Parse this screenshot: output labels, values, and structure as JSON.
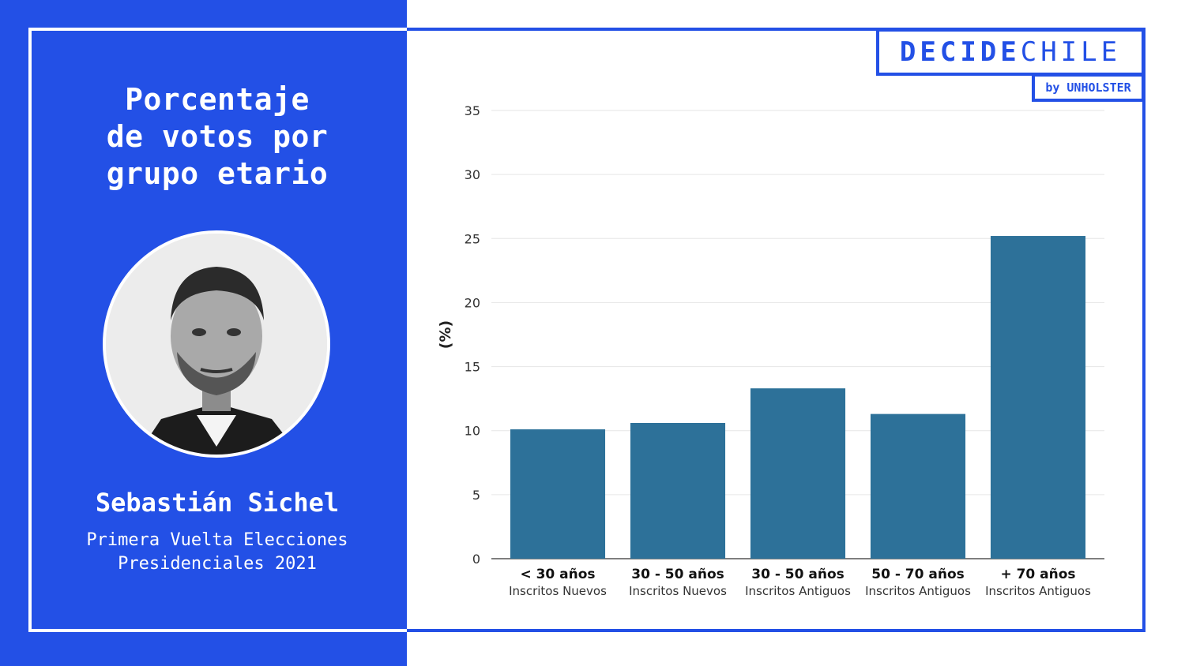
{
  "panel": {
    "title": "Porcentaje\nde votos por\ngrupo etario",
    "candidate_name": "Sebastián Sichel",
    "subtitle": "Primera Vuelta Elecciones\nPresidenciales 2021"
  },
  "logo": {
    "bold_text": "DECIDE",
    "light_text": "CHILE",
    "sub_text": "by UNHOLSTER"
  },
  "colors": {
    "brand_blue": "#2350e6",
    "bar": "#2d7199",
    "grid": "#e6e6e6"
  },
  "chart_data": {
    "type": "bar",
    "categories": [
      {
        "main": "< 30 años",
        "sub": "Inscritos Nuevos"
      },
      {
        "main": "30 - 50 años",
        "sub": "Inscritos Nuevos"
      },
      {
        "main": "30 - 50 años",
        "sub": "Inscritos Antiguos"
      },
      {
        "main": "50 - 70 años",
        "sub": "Inscritos Antiguos"
      },
      {
        "main": "+ 70 años",
        "sub": "Inscritos Antiguos"
      }
    ],
    "values": [
      10.1,
      10.6,
      13.3,
      11.3,
      25.2
    ],
    "ylabel": "(%)",
    "xlabel": "",
    "ylim": [
      0,
      35
    ],
    "yticks": [
      0,
      5,
      10,
      15,
      20,
      25,
      30,
      35
    ],
    "grid": true,
    "legend": false
  }
}
